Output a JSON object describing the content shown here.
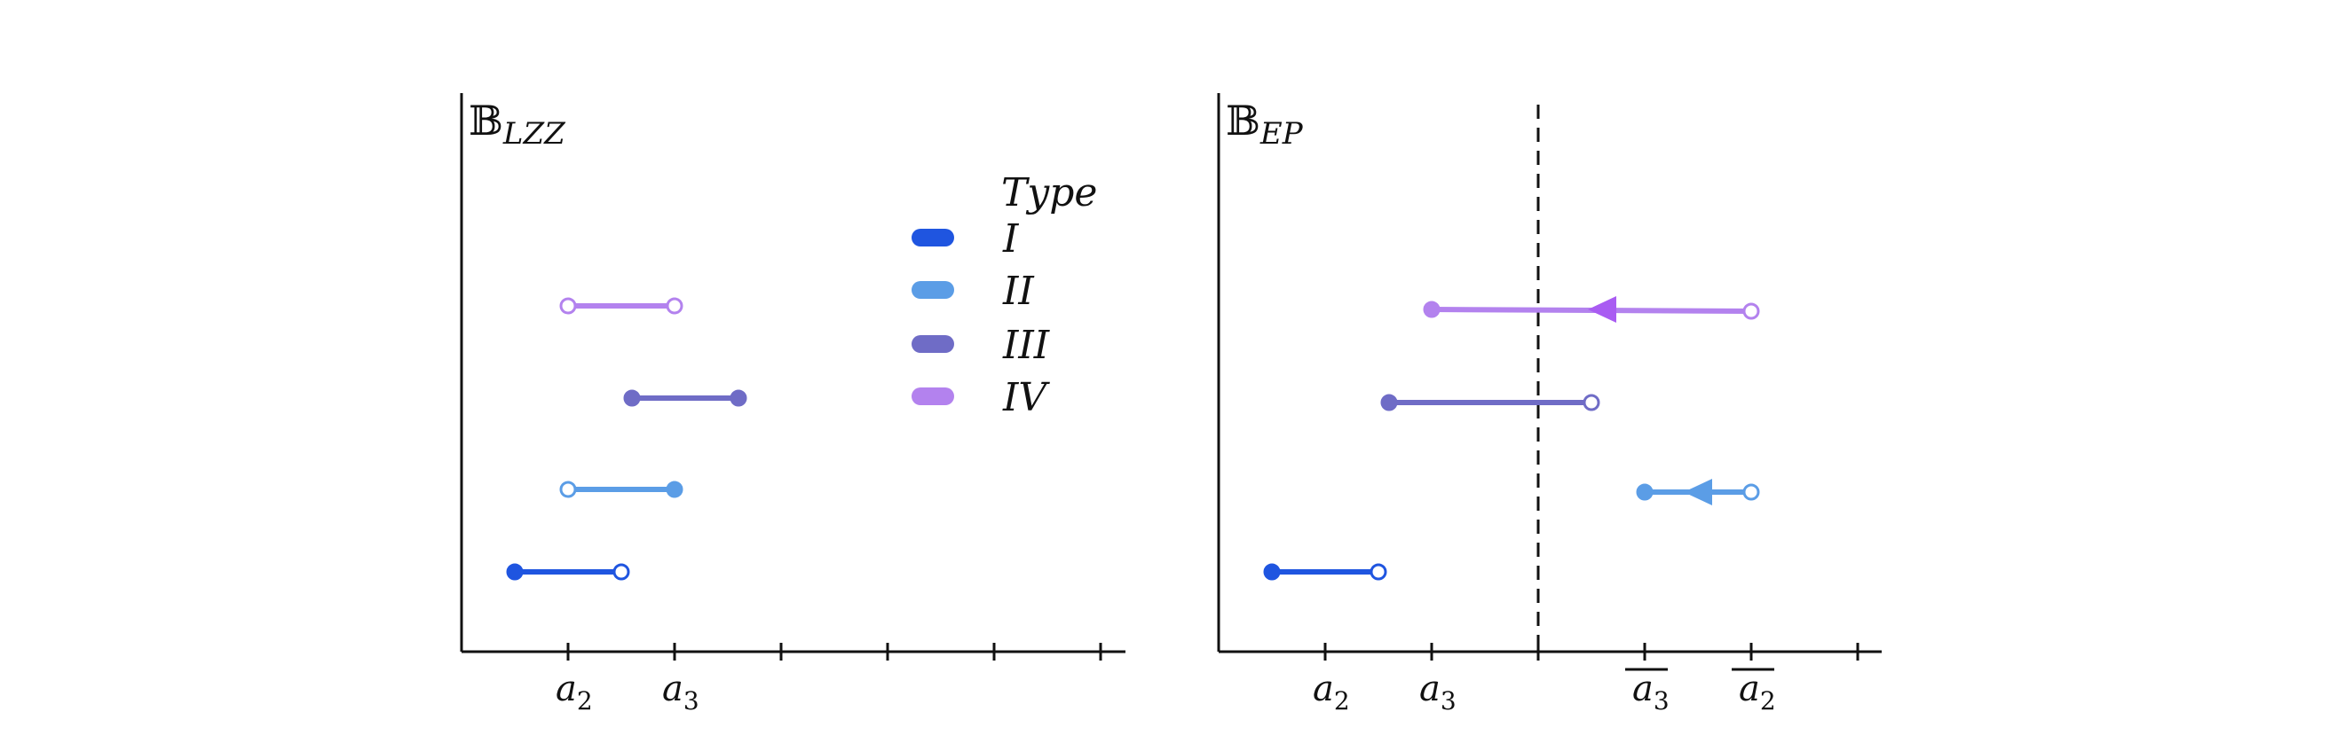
{
  "colors": {
    "type_I": "#1f55e0",
    "type_II": "#5b9de6",
    "type_III": "#6f6cc6",
    "type_IV": "#b382ee",
    "arrow_IV": "#a95cf2",
    "axis": "#111111"
  },
  "legend": {
    "title": "Type",
    "items": [
      {
        "label": "I",
        "color_key": "type_I"
      },
      {
        "label": "II",
        "color_key": "type_II"
      },
      {
        "label": "III",
        "color_key": "type_III"
      },
      {
        "label": "IV",
        "color_key": "type_IV"
      }
    ]
  },
  "panels": [
    {
      "id": "lzz",
      "title_main": "𝔹",
      "title_sub": "LZZ",
      "tick_labels": [
        {
          "tick": 1,
          "text": "a",
          "sub": "2",
          "overline": false
        },
        {
          "tick": 2,
          "text": "a",
          "sub": "3",
          "overline": false
        }
      ],
      "tick_count": 6,
      "dashed_tick": null,
      "intervals": [
        {
          "type": "IV",
          "row": 3,
          "start": 1,
          "end": 2,
          "start_closed": false,
          "end_closed": false,
          "arrow": null
        },
        {
          "type": "III",
          "row": 2,
          "start": 1.6,
          "end": 2.6,
          "start_closed": true,
          "end_closed": true,
          "arrow": null
        },
        {
          "type": "II",
          "row": 1,
          "start": 1,
          "end": 2,
          "start_closed": false,
          "end_closed": true,
          "arrow": null
        },
        {
          "type": "I",
          "row": 0,
          "start": 0.5,
          "end": 1.5,
          "start_closed": true,
          "end_closed": false,
          "arrow": null
        }
      ]
    },
    {
      "id": "ep",
      "title_main": "𝔹",
      "title_sub": "EP",
      "tick_labels": [
        {
          "tick": 1,
          "text": "a",
          "sub": "2",
          "overline": false
        },
        {
          "tick": 2,
          "text": "a",
          "sub": "3",
          "overline": false
        },
        {
          "tick": 4,
          "text": "a",
          "sub": "3",
          "overline": true
        },
        {
          "tick": 5,
          "text": "a",
          "sub": "2",
          "overline": true
        }
      ],
      "tick_count": 6,
      "dashed_tick": 3,
      "intervals": [
        {
          "type": "IV",
          "row": 3,
          "start": 2,
          "end": 5,
          "start_closed": true,
          "end_closed": false,
          "arrow": 3.7
        },
        {
          "type": "III",
          "row": 2,
          "start": 1.6,
          "end": 3.5,
          "start_closed": true,
          "end_closed": false,
          "arrow": null
        },
        {
          "type": "II",
          "row": 1,
          "start": 4,
          "end": 5,
          "start_closed": true,
          "end_closed": false,
          "arrow": 4.6
        },
        {
          "type": "I",
          "row": 0,
          "start": 0.5,
          "end": 1.5,
          "start_closed": true,
          "end_closed": false,
          "arrow": null
        }
      ]
    }
  ]
}
